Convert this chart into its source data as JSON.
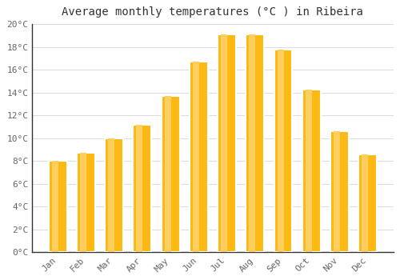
{
  "title": "Average monthly temperatures (°C ) in Ribeira",
  "months": [
    "Jan",
    "Feb",
    "Mar",
    "Apr",
    "May",
    "Jun",
    "Jul",
    "Aug",
    "Sep",
    "Oct",
    "Nov",
    "Dec"
  ],
  "temperatures": [
    8.0,
    8.7,
    10.0,
    11.2,
    13.7,
    16.7,
    19.1,
    19.1,
    17.8,
    14.3,
    10.6,
    8.6
  ],
  "bar_color": "#FDB913",
  "bar_color_light": "#FECF5E",
  "background_color": "#ffffff",
  "grid_color": "#dddddd",
  "ylim": [
    0,
    20
  ],
  "yticks": [
    0,
    2,
    4,
    6,
    8,
    10,
    12,
    14,
    16,
    18,
    20
  ],
  "title_fontsize": 10,
  "tick_fontsize": 8,
  "tick_label_color": "#666666",
  "bar_width": 0.65
}
